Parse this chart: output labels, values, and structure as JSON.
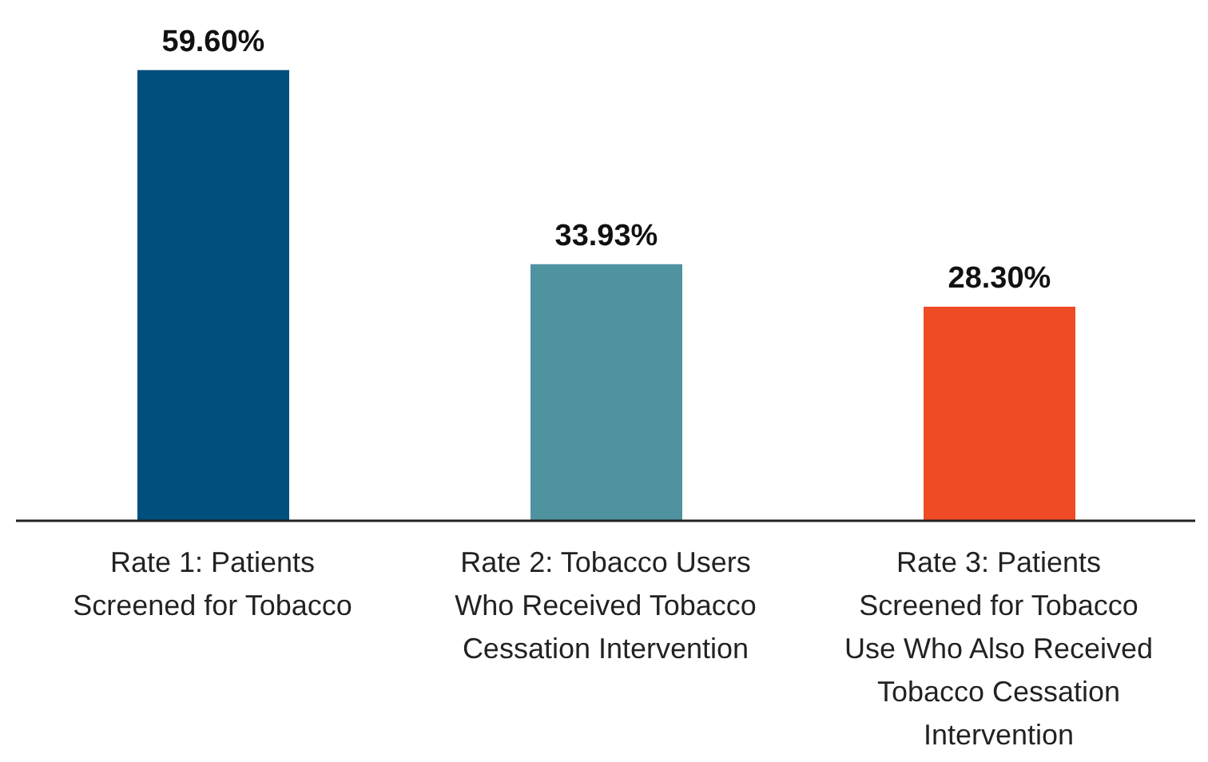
{
  "chart_data": {
    "type": "bar",
    "categories": [
      "Rate 1: Patients Screened for Tobacco",
      "Rate 2: Tobacco Users Who Received Tobacco Cessation Intervention",
      "Rate 3: Patients Screened for Tobacco Use Who Also Received Tobacco Cessation Intervention"
    ],
    "values": [
      59.6,
      33.93,
      28.3
    ],
    "colors": [
      "#004f7c",
      "#5093a0",
      "#ef4b24"
    ],
    "value_labels": [
      "59.60%",
      "33.93%",
      "28.30%"
    ],
    "grid": false,
    "legend": false
  }
}
